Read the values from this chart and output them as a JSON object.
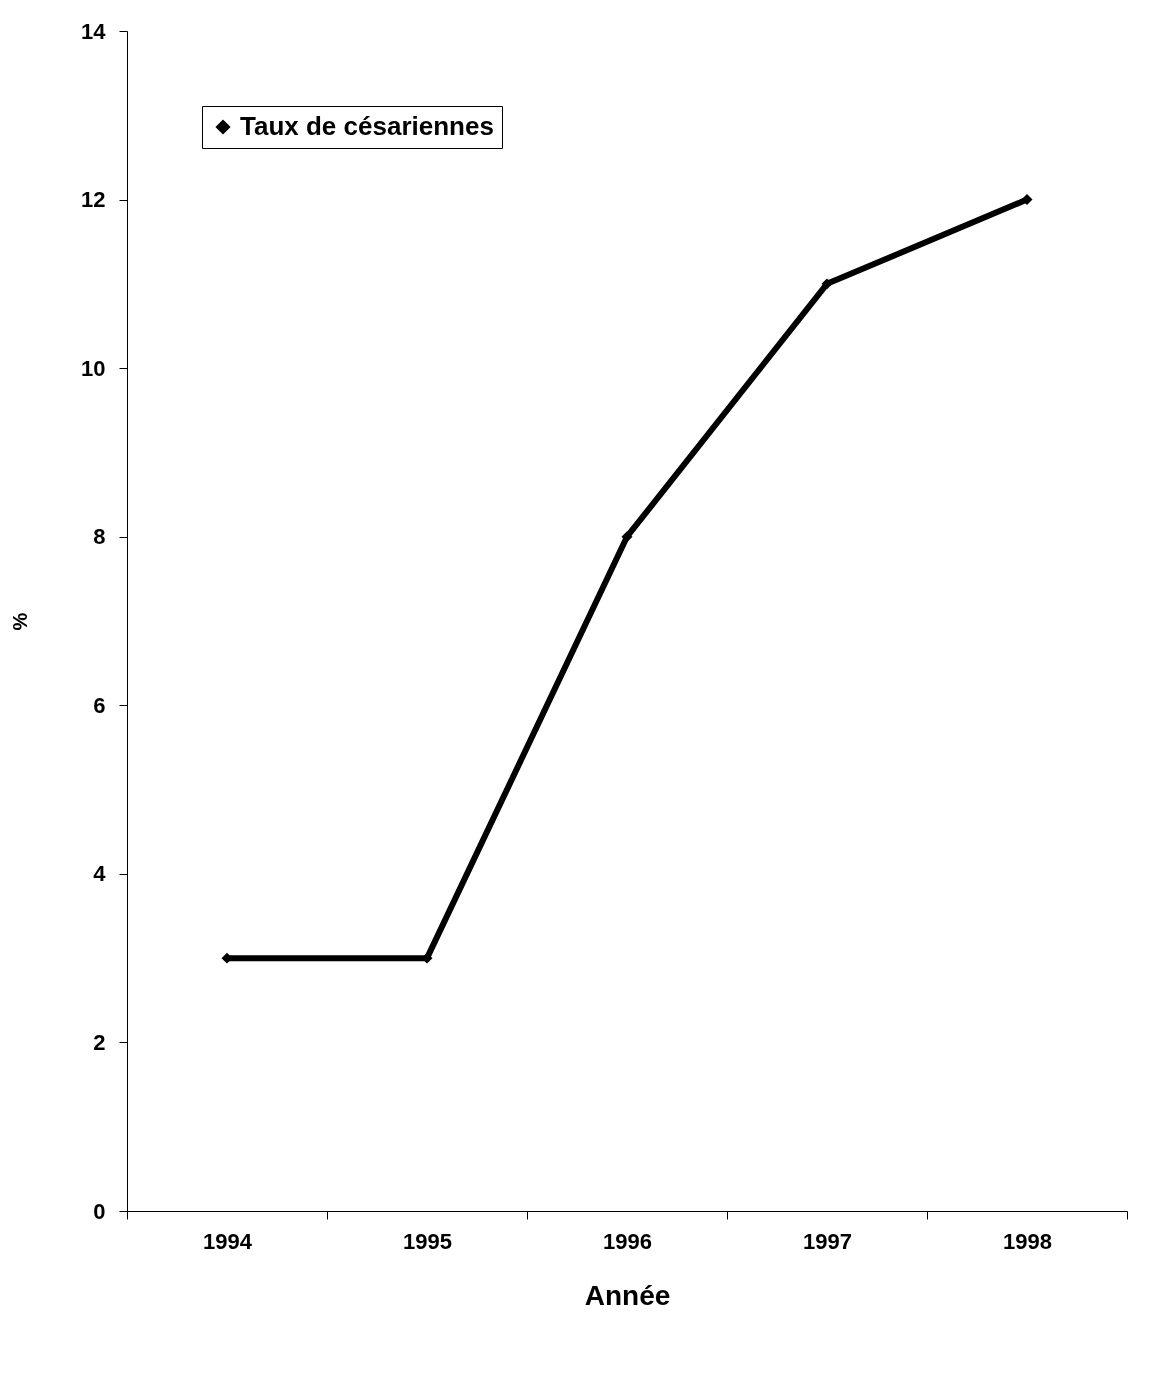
{
  "chart_data": {
    "type": "line",
    "xlabel": "Année",
    "ylabel": "%",
    "categories": [
      "1994",
      "1995",
      "1996",
      "1997",
      "1998"
    ],
    "series": [
      {
        "name": "Taux de césariennes",
        "color": "#000000",
        "values": [
          3,
          3,
          8,
          11,
          12
        ]
      }
    ],
    "ylim": [
      0,
      14
    ],
    "yticks": [
      0,
      2,
      4,
      6,
      8,
      10,
      12,
      14
    ],
    "legend": "top left",
    "marker": "diamond",
    "line_style": "solid"
  }
}
